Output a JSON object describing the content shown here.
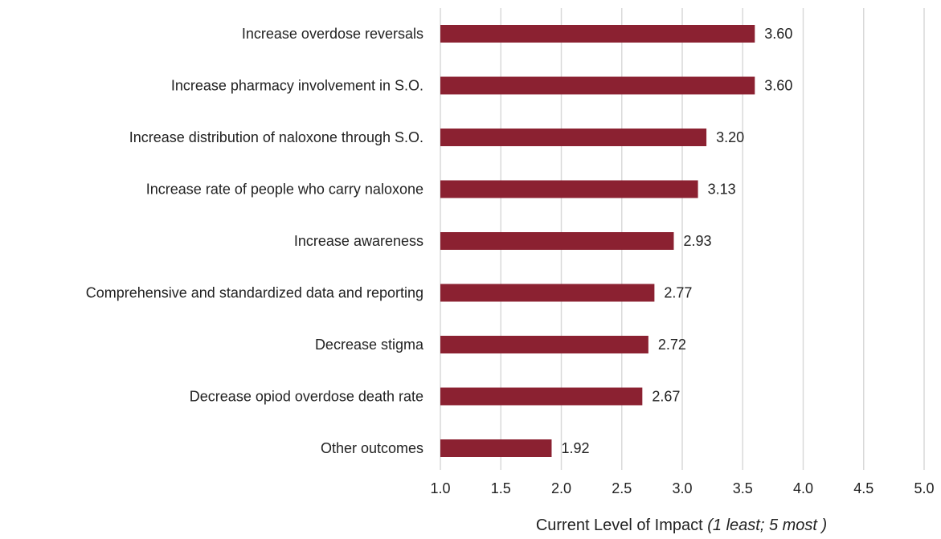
{
  "chart_data": {
    "type": "bar",
    "orientation": "horizontal",
    "categories": [
      "Increase overdose reversals",
      "Increase pharmacy involvement in S.O.",
      "Increase distribution of naloxone through S.O.",
      "Increase rate of people who carry naloxone",
      "Increase awareness",
      "Comprehensive and standardized data and reporting",
      "Decrease stigma",
      "Decrease opiod overdose death rate",
      "Other outcomes"
    ],
    "values": [
      3.6,
      3.6,
      3.2,
      3.13,
      2.93,
      2.77,
      2.72,
      2.67,
      1.92
    ],
    "data_labels": [
      "3.60",
      "3.60",
      "3.20",
      "3.13",
      "2.93",
      "2.77",
      "2.72",
      "2.67",
      "1.92"
    ],
    "xlim": [
      1.0,
      5.0
    ],
    "xticks": [
      1.0,
      1.5,
      2.0,
      2.5,
      3.0,
      3.5,
      4.0,
      4.5,
      5.0
    ],
    "xtick_labels": [
      "1.0",
      "1.5",
      "2.0",
      "2.5",
      "3.0",
      "3.5",
      "4.0",
      "4.5",
      "5.0"
    ],
    "xlabel": "Current Level of Impact",
    "xlabel_note": "(1 least; 5 most )",
    "grid": "vertical",
    "legend": "none",
    "bar_color": "#8b2131"
  }
}
